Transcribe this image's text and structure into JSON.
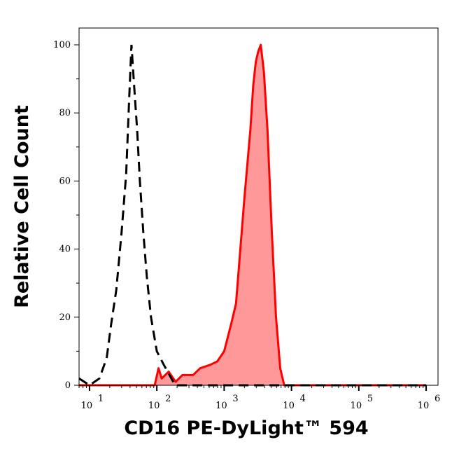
{
  "chart_data": {
    "type": "area",
    "title": "",
    "xlabel": "CD16 PE-DyLight™ 594",
    "ylabel": "Relative Cell Count",
    "x_scale": "log",
    "xlim": [
      7,
      1500000
    ],
    "ylim": [
      0,
      105
    ],
    "x_ticks": [
      {
        "value": 10,
        "base": "10",
        "exp": "1"
      },
      {
        "value": 100,
        "base": "10",
        "exp": "2"
      },
      {
        "value": 1000,
        "base": "10",
        "exp": "3"
      },
      {
        "value": 10000,
        "base": "10",
        "exp": "4"
      },
      {
        "value": 100000,
        "base": "10",
        "exp": "5"
      },
      {
        "value": 1000000,
        "base": "10",
        "exp": "6"
      }
    ],
    "y_ticks": [
      "0",
      "20",
      "40",
      "60",
      "80",
      "100"
    ],
    "grid": false,
    "series": [
      {
        "style": "dashed line",
        "color": "#000000",
        "x": [
          7,
          10,
          14,
          18,
          21,
          25,
          30,
          35,
          39,
          42,
          46,
          51,
          56,
          63,
          71,
          82,
          100,
          127,
          154,
          187,
          1000000
        ],
        "y": [
          2,
          0,
          2,
          8,
          18,
          28,
          45,
          62,
          85,
          100,
          88,
          75,
          60,
          45,
          32,
          20,
          10,
          6,
          3,
          0,
          0
        ]
      },
      {
        "style": "filled area",
        "color": "#ff0000",
        "fill": "#ff9999",
        "x": [
          7,
          93,
          106,
          118,
          150,
          190,
          240,
          345,
          440,
          620,
          790,
          1000,
          1270,
          1500,
          1740,
          2000,
          2450,
          2700,
          2950,
          3200,
          3500,
          3900,
          4400,
          5100,
          5900,
          6800,
          7800,
          1000000
        ],
        "y": [
          0,
          0,
          5,
          2,
          4,
          1,
          3,
          3,
          5,
          6,
          7,
          10,
          18,
          24,
          40,
          55,
          75,
          88,
          95,
          98,
          100,
          92,
          75,
          45,
          20,
          5,
          0,
          0
        ]
      }
    ]
  }
}
